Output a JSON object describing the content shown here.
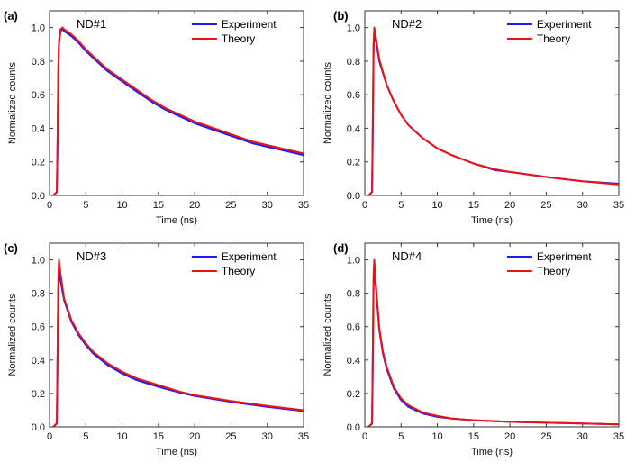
{
  "colors": {
    "experiment": "#1a1aff",
    "theory": "#ee1111"
  },
  "chart_data": [
    {
      "type": "line",
      "panel_label": "(a)",
      "sample": "ND#1",
      "xlabel": "Time (ns)",
      "ylabel": "Normalized counts",
      "xlim": [
        0,
        35
      ],
      "ylim": [
        0,
        1.1
      ],
      "xticks": [
        "0",
        "5",
        "10",
        "15",
        "20",
        "25",
        "30",
        "35"
      ],
      "yticks": [
        "0.0",
        "0.2",
        "0.4",
        "0.6",
        "0.8",
        "1.0"
      ],
      "legend_position": "top-right",
      "series": [
        {
          "name": "Experiment",
          "color": "#1a1aff",
          "x": [
            0.5,
            1.0,
            1.1,
            1.2,
            1.3,
            1.5,
            1.8,
            2.0,
            3,
            4,
            5,
            6,
            7,
            8,
            9,
            10,
            12,
            14,
            16,
            18,
            20,
            22,
            24,
            26,
            28,
            30,
            32,
            34,
            35
          ],
          "y": [
            0.0,
            0.02,
            0.3,
            0.7,
            0.9,
            0.98,
            0.99,
            0.98,
            0.95,
            0.91,
            0.86,
            0.82,
            0.78,
            0.74,
            0.71,
            0.68,
            0.62,
            0.56,
            0.51,
            0.47,
            0.43,
            0.4,
            0.37,
            0.34,
            0.31,
            0.29,
            0.27,
            0.25,
            0.24
          ]
        },
        {
          "name": "Theory",
          "color": "#ee1111",
          "x": [
            0.5,
            1.0,
            1.1,
            1.2,
            1.3,
            1.5,
            1.8,
            2.0,
            3,
            4,
            5,
            6,
            7,
            8,
            9,
            10,
            12,
            14,
            16,
            18,
            20,
            22,
            24,
            26,
            28,
            30,
            32,
            34,
            35
          ],
          "y": [
            0.0,
            0.02,
            0.35,
            0.75,
            0.92,
            0.99,
            1.0,
            0.99,
            0.96,
            0.92,
            0.87,
            0.83,
            0.79,
            0.75,
            0.72,
            0.69,
            0.63,
            0.57,
            0.52,
            0.48,
            0.44,
            0.41,
            0.38,
            0.35,
            0.32,
            0.3,
            0.28,
            0.26,
            0.25
          ]
        }
      ]
    },
    {
      "type": "line",
      "panel_label": "(b)",
      "sample": "ND#2",
      "xlabel": "Time (ns)",
      "ylabel": "Normalized counts",
      "xlim": [
        0,
        35
      ],
      "ylim": [
        0,
        1.1
      ],
      "xticks": [
        "0",
        "5",
        "10",
        "15",
        "20",
        "25",
        "30",
        "35"
      ],
      "yticks": [
        "0.0",
        "0.2",
        "0.4",
        "0.6",
        "0.8",
        "1.0"
      ],
      "legend_position": "top-right",
      "series": [
        {
          "name": "Experiment",
          "color": "#1a1aff",
          "x": [
            0.5,
            1.0,
            1.1,
            1.2,
            1.3,
            1.5,
            2,
            3,
            4,
            5,
            6,
            8,
            10,
            12,
            15,
            18,
            20,
            25,
            30,
            35
          ],
          "y": [
            0.0,
            0.02,
            0.4,
            0.85,
            0.97,
            0.93,
            0.8,
            0.66,
            0.56,
            0.48,
            0.42,
            0.34,
            0.28,
            0.24,
            0.19,
            0.15,
            0.14,
            0.11,
            0.085,
            0.07
          ]
        },
        {
          "name": "Theory",
          "color": "#ee1111",
          "x": [
            0.5,
            1.0,
            1.1,
            1.2,
            1.3,
            1.5,
            2,
            3,
            4,
            5,
            6,
            8,
            10,
            12,
            15,
            18,
            20,
            25,
            30,
            35
          ],
          "y": [
            0.0,
            0.02,
            0.45,
            0.9,
            1.0,
            0.95,
            0.81,
            0.66,
            0.56,
            0.48,
            0.42,
            0.34,
            0.28,
            0.24,
            0.19,
            0.155,
            0.14,
            0.11,
            0.085,
            0.065
          ]
        }
      ]
    },
    {
      "type": "line",
      "panel_label": "(c)",
      "sample": "ND#3",
      "xlabel": "Time (ns)",
      "ylabel": "Normalized counts",
      "xlim": [
        0,
        35
      ],
      "ylim": [
        0,
        1.1
      ],
      "xticks": [
        "0",
        "5",
        "10",
        "15",
        "20",
        "25",
        "30",
        "35"
      ],
      "yticks": [
        "0.0",
        "0.2",
        "0.4",
        "0.6",
        "0.8",
        "1.0"
      ],
      "legend_position": "top-right",
      "series": [
        {
          "name": "Experiment",
          "color": "#1a1aff",
          "x": [
            0.5,
            1.0,
            1.1,
            1.2,
            1.3,
            1.5,
            2,
            3,
            4,
            5,
            6,
            8,
            10,
            12,
            15,
            18,
            20,
            25,
            30,
            35
          ],
          "y": [
            0.0,
            0.02,
            0.4,
            0.8,
            0.92,
            0.88,
            0.76,
            0.63,
            0.55,
            0.49,
            0.44,
            0.37,
            0.32,
            0.28,
            0.24,
            0.205,
            0.185,
            0.15,
            0.12,
            0.095
          ]
        },
        {
          "name": "Theory",
          "color": "#ee1111",
          "x": [
            0.5,
            1.0,
            1.1,
            1.2,
            1.3,
            1.5,
            2,
            3,
            4,
            5,
            6,
            8,
            10,
            12,
            15,
            18,
            20,
            25,
            30,
            35
          ],
          "y": [
            0.0,
            0.02,
            0.45,
            0.88,
            1.0,
            0.92,
            0.77,
            0.64,
            0.56,
            0.5,
            0.45,
            0.38,
            0.33,
            0.29,
            0.25,
            0.21,
            0.19,
            0.155,
            0.125,
            0.1
          ]
        }
      ]
    },
    {
      "type": "line",
      "panel_label": "(d)",
      "sample": "ND#4",
      "xlabel": "Time (ns)",
      "ylabel": "Normalized counts",
      "xlim": [
        0,
        35
      ],
      "ylim": [
        0,
        1.1
      ],
      "xticks": [
        "0",
        "5",
        "10",
        "15",
        "20",
        "25",
        "30",
        "35"
      ],
      "yticks": [
        "0.0",
        "0.2",
        "0.4",
        "0.6",
        "0.8",
        "1.0"
      ],
      "legend_position": "top-right",
      "series": [
        {
          "name": "Experiment",
          "color": "#1a1aff",
          "x": [
            0.5,
            1.0,
            1.1,
            1.2,
            1.3,
            1.5,
            2,
            2.5,
            3,
            4,
            5,
            6,
            8,
            10,
            12,
            15,
            20,
            25,
            30,
            35
          ],
          "y": [
            0.0,
            0.02,
            0.4,
            0.85,
            0.97,
            0.85,
            0.58,
            0.44,
            0.35,
            0.23,
            0.16,
            0.12,
            0.08,
            0.06,
            0.05,
            0.04,
            0.03,
            0.025,
            0.02,
            0.015
          ]
        },
        {
          "name": "Theory",
          "color": "#ee1111",
          "x": [
            0.5,
            1.0,
            1.1,
            1.2,
            1.3,
            1.5,
            2,
            2.5,
            3,
            4,
            5,
            6,
            8,
            10,
            12,
            15,
            20,
            25,
            30,
            35
          ],
          "y": [
            0.0,
            0.02,
            0.45,
            0.9,
            1.0,
            0.87,
            0.59,
            0.45,
            0.36,
            0.24,
            0.17,
            0.13,
            0.085,
            0.065,
            0.05,
            0.04,
            0.03,
            0.025,
            0.02,
            0.015
          ]
        }
      ]
    }
  ]
}
